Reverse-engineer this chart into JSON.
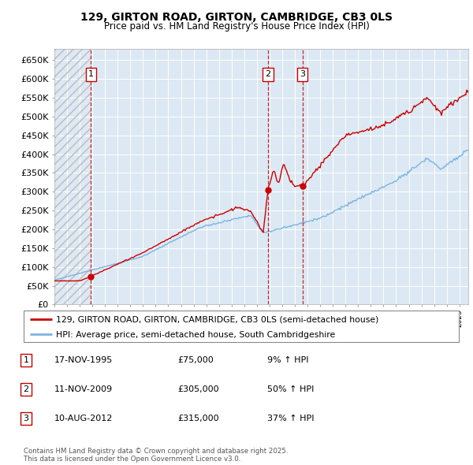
{
  "title1": "129, GIRTON ROAD, GIRTON, CAMBRIDGE, CB3 0LS",
  "title2": "Price paid vs. HM Land Registry's House Price Index (HPI)",
  "ylabel_ticks": [
    "£0",
    "£50K",
    "£100K",
    "£150K",
    "£200K",
    "£250K",
    "£300K",
    "£350K",
    "£400K",
    "£450K",
    "£500K",
    "£550K",
    "£600K",
    "£650K"
  ],
  "ylim": [
    0,
    680000
  ],
  "sale1_date": 1995.88,
  "sale1_price": 75000,
  "sale2_date": 2009.87,
  "sale2_price": 305000,
  "sale3_date": 2012.61,
  "sale3_price": 315000,
  "hpi_color": "#7cb4e0",
  "price_color": "#cc0000",
  "vline_color": "#cc0000",
  "bg_color": "#dce9f5",
  "legend_label_price": "129, GIRTON ROAD, GIRTON, CAMBRIDGE, CB3 0LS (semi-detached house)",
  "legend_label_hpi": "HPI: Average price, semi-detached house, South Cambridgeshire",
  "table_entries": [
    {
      "num": "1",
      "date": "17-NOV-1995",
      "price": "£75,000",
      "pct": "9% ↑ HPI"
    },
    {
      "num": "2",
      "date": "11-NOV-2009",
      "price": "£305,000",
      "pct": "50% ↑ HPI"
    },
    {
      "num": "3",
      "date": "10-AUG-2012",
      "price": "£315,000",
      "pct": "37% ↑ HPI"
    }
  ],
  "footer": "Contains HM Land Registry data © Crown copyright and database right 2025.\nThis data is licensed under the Open Government Licence v3.0.",
  "xstart": 1993.0,
  "xend": 2025.7
}
